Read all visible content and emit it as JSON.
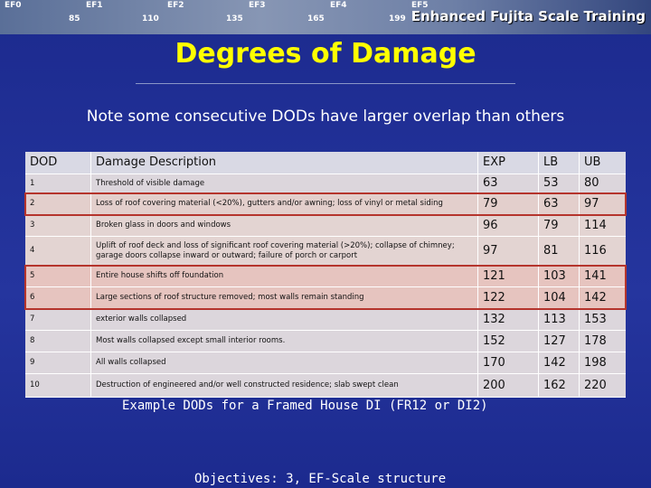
{
  "banner": {
    "scale_labels": [
      "EF0",
      "EF1",
      "EF2",
      "EF3",
      "EF4",
      "EF5"
    ],
    "wind_speeds": [
      85,
      110,
      135,
      165,
      199
    ],
    "title": "Enhanced Fujita Scale Training"
  },
  "title": "Degrees of Damage",
  "subtitle": "Note some consecutive DODs have larger overlap than others",
  "table": {
    "header": [
      "DOD",
      "Damage Description",
      "EXP",
      "LB",
      "UB"
    ],
    "rows": [
      [
        1,
        "Threshold of visible damage",
        63,
        53,
        80
      ],
      [
        2,
        "Loss of roof covering material (<20%), gutters and/or awning; loss of vinyl or metal siding",
        79,
        63,
        97
      ],
      [
        3,
        "Broken glass in doors and windows",
        96,
        79,
        114
      ],
      [
        4,
        "Uplift of roof deck and loss of significant roof covering material (>20%); collapse of chimney; garage doors collapse inward or outward; failure of porch or carport",
        97,
        81,
        116
      ],
      [
        5,
        "Entire house shifts off foundation",
        121,
        103,
        141
      ],
      [
        6,
        "Large sections of roof structure removed; most walls remain standing",
        122,
        104,
        142
      ],
      [
        7,
        "exterior walls collapsed",
        132,
        113,
        153
      ],
      [
        8,
        "Most walls collapsed except small interior rooms.",
        152,
        127,
        178
      ],
      [
        9,
        "All walls collapsed",
        170,
        142,
        198
      ],
      [
        10,
        "Destruction of engineered and/or well constructed residence; slab swept clean",
        200,
        162,
        220
      ]
    ]
  },
  "caption": "Example DODs for a Framed House DI  (FR12 or DI2)",
  "footer": "Objectives:  3, EF-Scale structure"
}
